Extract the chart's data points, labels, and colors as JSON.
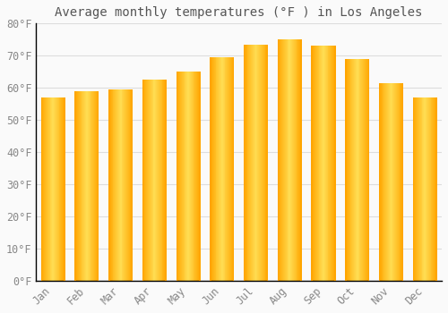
{
  "title": "Average monthly temperatures (°F ) in Los Angeles",
  "months": [
    "Jan",
    "Feb",
    "Mar",
    "Apr",
    "May",
    "Jun",
    "Jul",
    "Aug",
    "Sep",
    "Oct",
    "Nov",
    "Dec"
  ],
  "values": [
    57,
    59,
    59.5,
    62.5,
    65,
    69.5,
    73.5,
    75,
    73,
    69,
    61.5,
    57
  ],
  "bar_color_light": "#FFDD55",
  "bar_color_dark": "#FFA500",
  "background_color": "#FAFAFA",
  "grid_color": "#DDDDDD",
  "ylim": [
    0,
    80
  ],
  "yticks": [
    0,
    10,
    20,
    30,
    40,
    50,
    60,
    70,
    80
  ],
  "ytick_labels": [
    "0°F",
    "10°F",
    "20°F",
    "30°F",
    "40°F",
    "50°F",
    "60°F",
    "70°F",
    "80°F"
  ],
  "title_fontsize": 10,
  "tick_fontsize": 8.5,
  "tick_font_color": "#888888",
  "title_font_color": "#555555",
  "spine_color": "#000000",
  "bar_width": 0.72
}
